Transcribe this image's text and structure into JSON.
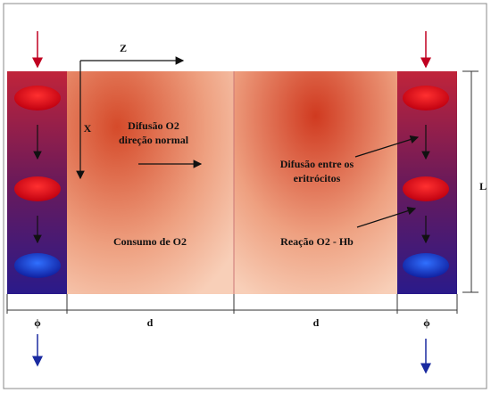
{
  "axes": {
    "z": "Z",
    "x": "X"
  },
  "labels": {
    "diffusion_normal": [
      "Difusão O2",
      "direção normal"
    ],
    "diffusion_between": [
      "Difusão entre os",
      "eritrócitos"
    ],
    "consumption": "Consumo de O2",
    "reaction": "Reação O2 - Hb",
    "length": "L"
  },
  "dimensions": [
    "ϕ",
    "d",
    "d",
    "ϕ"
  ]
}
